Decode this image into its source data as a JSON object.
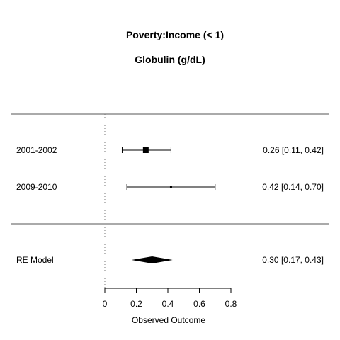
{
  "chart_data": {
    "type": "forest",
    "title": "Poverty:Income (< 1)",
    "subtitle": "Globulin (g/dL)",
    "xlabel": "Observed Outcome",
    "xlim": [
      0,
      0.8
    ],
    "xticks": [
      0,
      0.2,
      0.4,
      0.6,
      0.8
    ],
    "xtick_labels": [
      "0",
      "0.2",
      "0.4",
      "0.6",
      "0.8"
    ],
    "reference_line": 0,
    "studies": [
      {
        "label": "2001-2002",
        "estimate": 0.26,
        "ci_low": 0.11,
        "ci_high": 0.42,
        "text": "0.26 [0.11, 0.42]",
        "weight": "large"
      },
      {
        "label": "2009-2010",
        "estimate": 0.42,
        "ci_low": 0.14,
        "ci_high": 0.7,
        "text": "0.42 [0.14, 0.70]",
        "weight": "small"
      }
    ],
    "summary": {
      "label": "RE Model",
      "estimate": 0.3,
      "ci_low": 0.17,
      "ci_high": 0.43,
      "text": "0.30 [0.17, 0.43]"
    }
  }
}
